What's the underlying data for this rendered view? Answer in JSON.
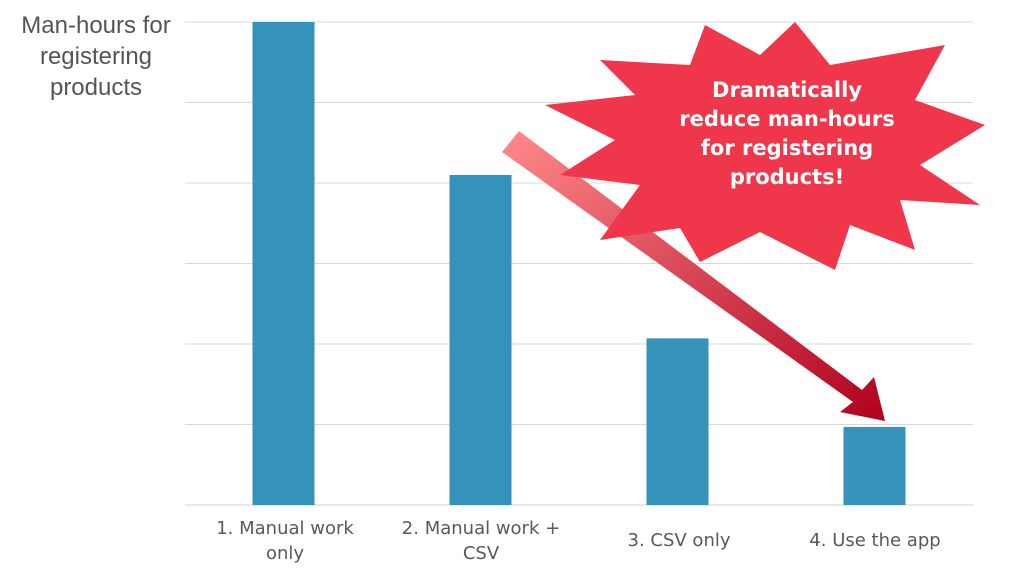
{
  "chart_data": {
    "type": "bar",
    "title": "",
    "ylabel_lines": [
      "Man-hours for",
      "registering",
      "products"
    ],
    "categories": [
      [
        "1. Manual work",
        "only"
      ],
      [
        "2. Manual work +",
        "CSV"
      ],
      [
        "3. CSV only"
      ],
      [
        "4. Use the app"
      ]
    ],
    "values": [
      6.0,
      4.1,
      2.07,
      0.97
    ],
    "ylim": [
      0,
      6
    ],
    "grid": true,
    "bar_color": "#3593BB",
    "gridline_color": "#D9D9D9"
  },
  "callout": {
    "lines": [
      "Dramatically",
      "reduce man-hours",
      "for registering",
      "products!"
    ],
    "fill_color": "#F0364B",
    "text_color": "#FFFFFF"
  },
  "trend_arrow": {
    "from_category": 1,
    "to_category": 3,
    "color_start": "#FF8A8A",
    "color_end": "#B0001E"
  }
}
